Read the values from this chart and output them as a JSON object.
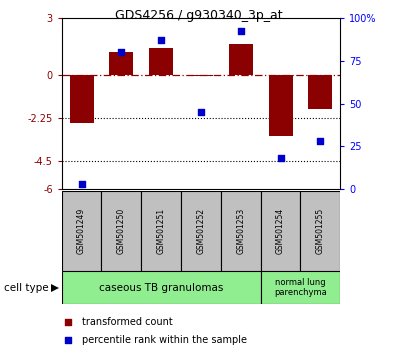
{
  "title": "GDS4256 / g930340_3p_at",
  "samples": [
    "GSM501249",
    "GSM501250",
    "GSM501251",
    "GSM501252",
    "GSM501253",
    "GSM501254",
    "GSM501255"
  ],
  "bar_values": [
    -2.5,
    1.2,
    1.4,
    -0.05,
    1.6,
    -3.2,
    -1.8
  ],
  "scatter_values": [
    3,
    80,
    87,
    45,
    92,
    18,
    28
  ],
  "ylim_left": [
    -6,
    3
  ],
  "ylim_right": [
    0,
    100
  ],
  "yticks_left": [
    3,
    0,
    -2.25,
    -4.5,
    -6
  ],
  "yticks_right": [
    100,
    75,
    50,
    25,
    0
  ],
  "ytick_labels_left": [
    "3",
    "0",
    "-2.25",
    "-4.5",
    "-6"
  ],
  "ytick_labels_right": [
    "100%",
    "75",
    "50",
    "25",
    "0"
  ],
  "hlines": [
    -2.25,
    -4.5
  ],
  "bar_color": "#8B0000",
  "scatter_color": "#0000CC",
  "group1_label": "caseous TB granulomas",
  "group1_samples": 5,
  "group2_label": "normal lung\nparenchyma",
  "group2_samples": 2,
  "cell_type_label": "cell type",
  "legend_bar_label": "transformed count",
  "legend_scatter_label": "percentile rank within the sample",
  "group1_color": "#90EE90",
  "group2_color": "#90EE90",
  "sample_box_color": "#C0C0C0"
}
